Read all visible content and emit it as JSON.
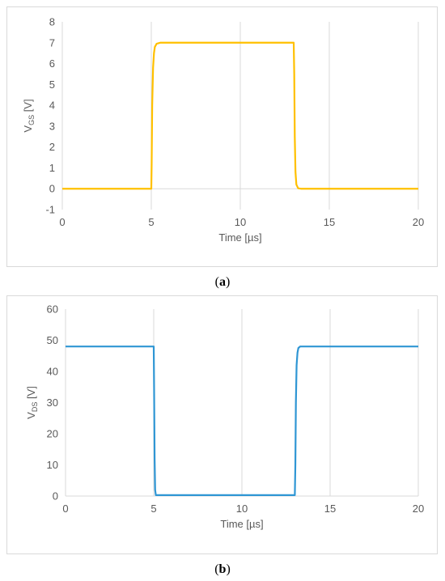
{
  "chart_data": [
    {
      "type": "line",
      "caption_label": "a",
      "xlabel": "Time [µs]",
      "ylabel_main": "V",
      "ylabel_sub": "GS",
      "ylabel_unit": " [V]",
      "xlim": [
        0,
        20
      ],
      "ylim": [
        -1,
        8
      ],
      "xticks": [
        0,
        5,
        10,
        15,
        20
      ],
      "yticks": [
        -1,
        0,
        1,
        2,
        3,
        4,
        5,
        6,
        7,
        8
      ],
      "grid": "vertical",
      "series": [
        {
          "color": "#ffc000",
          "x": [
            0,
            5.0,
            5.02,
            5.05,
            5.1,
            5.15,
            5.2,
            5.3,
            5.5,
            6,
            13.0,
            13.03,
            13.06,
            13.1,
            13.15,
            13.25,
            13.4,
            20
          ],
          "y": [
            0,
            0,
            1.2,
            4.0,
            5.8,
            6.5,
            6.8,
            6.95,
            7.0,
            7.0,
            7.0,
            5.5,
            2.5,
            0.8,
            0.2,
            0.02,
            0,
            0
          ]
        }
      ]
    },
    {
      "type": "line",
      "caption_label": "b",
      "xlabel": "Time [µs]",
      "ylabel_main": "V",
      "ylabel_sub": "DS",
      "ylabel_unit": " [V]",
      "xlim": [
        0,
        20
      ],
      "ylim": [
        0,
        60
      ],
      "xticks": [
        0,
        5,
        10,
        15,
        20
      ],
      "yticks": [
        0,
        10,
        20,
        30,
        40,
        50,
        60
      ],
      "grid": "vertical",
      "series": [
        {
          "color": "#2f96d4",
          "x": [
            0,
            5.0,
            5.02,
            5.05,
            5.08,
            5.12,
            13.0,
            13.03,
            13.06,
            13.1,
            13.15,
            13.2,
            13.3,
            13.5,
            20
          ],
          "y": [
            48,
            48,
            35,
            12,
            2,
            0.3,
            0.3,
            10,
            30,
            42,
            46,
            47.5,
            48,
            48,
            48
          ]
        }
      ]
    }
  ]
}
